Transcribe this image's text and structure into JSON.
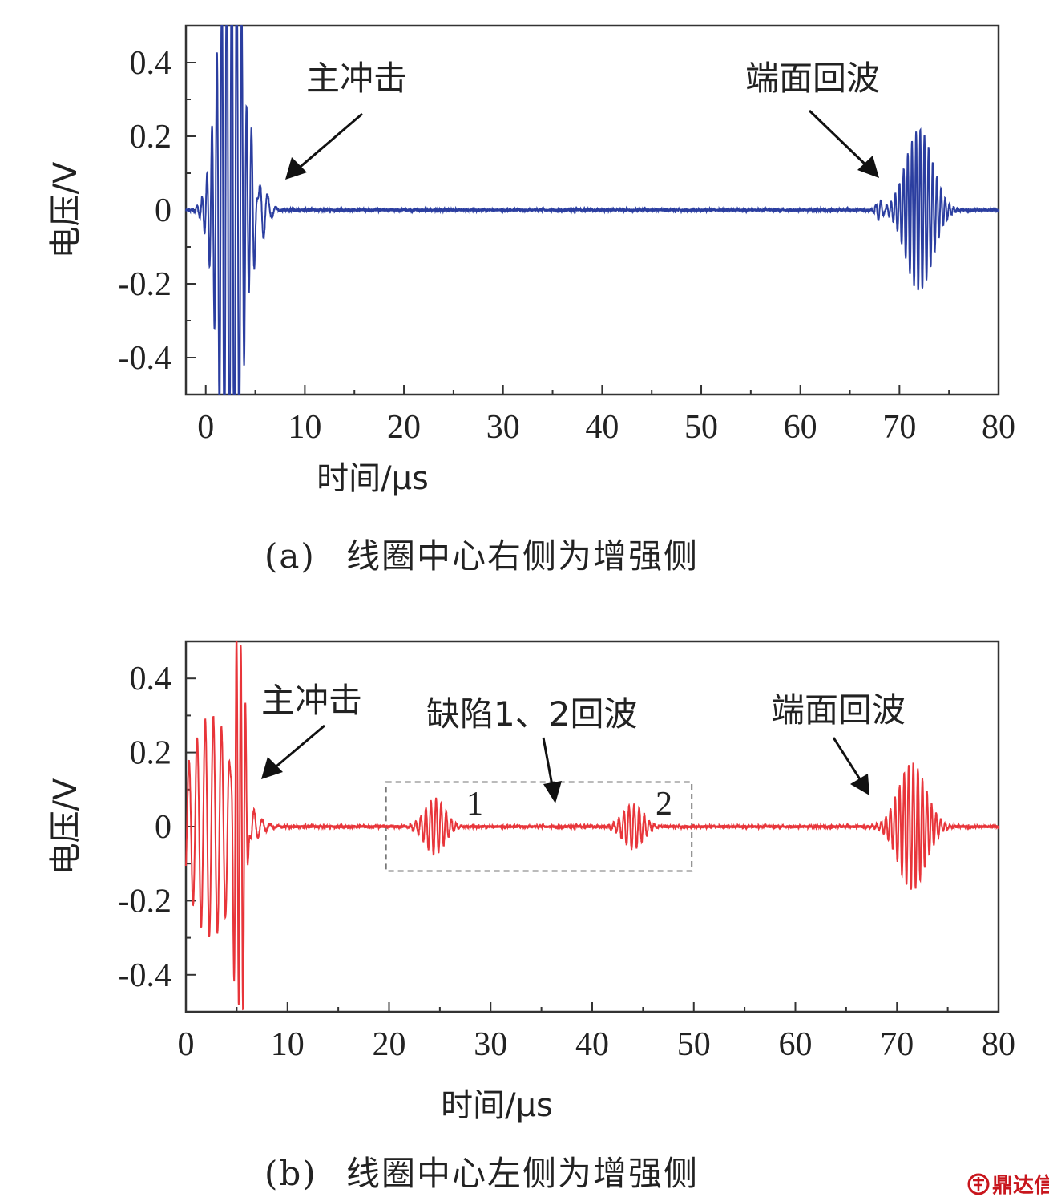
{
  "chart_data": [
    {
      "type": "line",
      "panel_label": "(a)",
      "caption": "线圈中心右侧为增强侧",
      "xlabel": "时间/μs",
      "ylabel": "电压/V",
      "xlim": [
        -2,
        80
      ],
      "ylim": [
        -0.5,
        0.5
      ],
      "xticks": [
        0,
        10,
        20,
        30,
        40,
        50,
        60,
        70,
        80
      ],
      "yticks": [
        0.4,
        0.2,
        0,
        -0.2,
        -0.4
      ],
      "ytick_labels": [
        "0.4",
        "0.2",
        "0",
        "-0.2",
        "-0.4"
      ],
      "grid": false,
      "series": [
        {
          "color": "#2b3ea0",
          "bursts": [
            {
              "center": 2.5,
              "width": 1.6,
              "amp": 0.9,
              "period": 0.5
            },
            {
              "center": 5.2,
              "width": 1.2,
              "amp": 0.09,
              "period": 0.85
            },
            {
              "center": 72.0,
              "width": 1.9,
              "amp": 0.22,
              "period": 0.42
            },
            {
              "center": 68.0,
              "width": 0.5,
              "amp": 0.03,
              "period": 0.5
            }
          ],
          "noise": 0.004
        }
      ],
      "annotations": [
        {
          "text": "主冲击",
          "target": [
            7.8,
            0.09
          ]
        },
        {
          "text": "端面回波",
          "target": [
            67.8,
            0.085
          ]
        }
      ]
    },
    {
      "type": "line",
      "panel_label": "(b)",
      "caption": "线圈中心左侧为增强侧",
      "xlabel": "时间/μs",
      "ylabel": "电压/V",
      "xlim": [
        0,
        80
      ],
      "ylim": [
        -0.5,
        0.5
      ],
      "xticks": [
        0,
        10,
        20,
        30,
        40,
        50,
        60,
        70,
        80
      ],
      "yticks": [
        0.4,
        0.2,
        0,
        -0.2,
        -0.4
      ],
      "ytick_labels": [
        "0.4",
        "0.2",
        "0",
        "-0.2",
        "-0.4"
      ],
      "grid": false,
      "series": [
        {
          "color": "#e8353a",
          "bursts": [
            {
              "center": 2.5,
              "width": 3.0,
              "amp": 0.3,
              "period": 0.8
            },
            {
              "center": 5.3,
              "width": 0.6,
              "amp": 0.6,
              "period": 0.45
            },
            {
              "center": 24.5,
              "width": 1.4,
              "amp": 0.075,
              "period": 0.5
            },
            {
              "center": 44.0,
              "width": 1.4,
              "amp": 0.06,
              "period": 0.5
            },
            {
              "center": 71.5,
              "width": 1.9,
              "amp": 0.17,
              "period": 0.45
            }
          ],
          "noise": 0.004
        }
      ],
      "annotations": [
        {
          "text": "主冲击",
          "target": [
            7.2,
            0.13
          ]
        },
        {
          "text": "缺陷1、2回波",
          "target": [
            36.0,
            0.07
          ]
        },
        {
          "text": "端面回波",
          "target": [
            67.0,
            0.08
          ]
        }
      ],
      "defect_labels": [
        "1",
        "2"
      ],
      "defect_box": {
        "x": [
          19.7,
          49.8
        ],
        "y": [
          -0.12,
          0.12
        ]
      }
    }
  ],
  "watermark": {
    "icon": "dingdaxin-logo-icon",
    "text": "鼎达信"
  }
}
